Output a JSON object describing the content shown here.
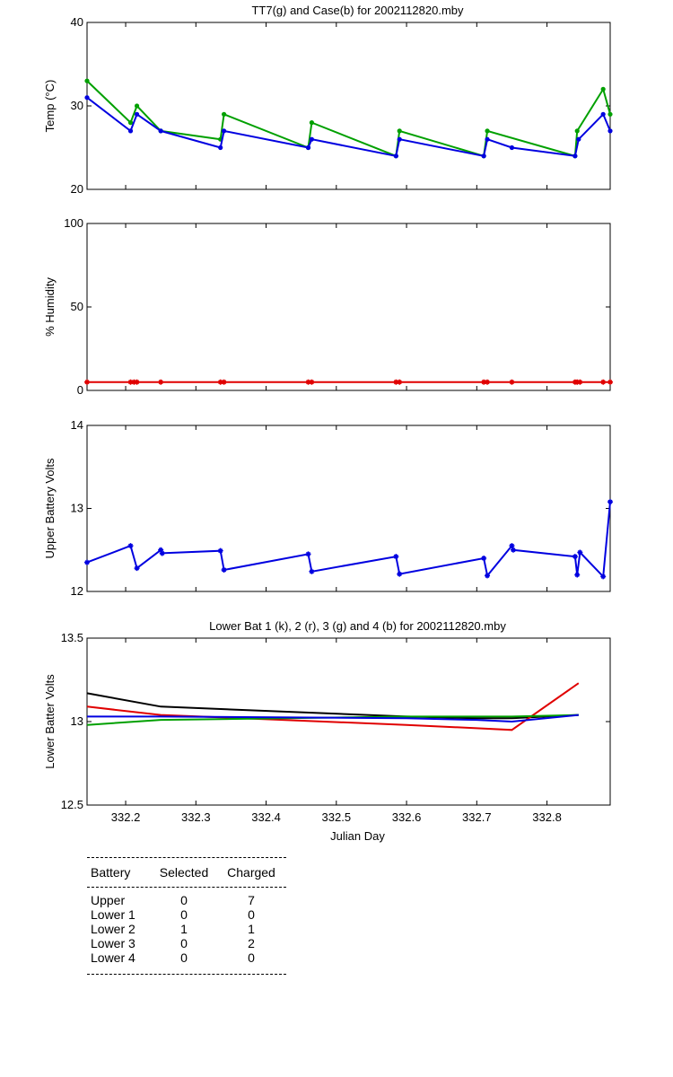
{
  "chart_data": [
    {
      "type": "line",
      "title": "TT7(g) and Case(b) for 2002112820.mby",
      "xlabel": "",
      "ylabel": "Temp  (°C)",
      "xlim": [
        332.145,
        332.89
      ],
      "ylim": [
        20,
        40
      ],
      "yticks": [
        20,
        30,
        40
      ],
      "series": [
        {
          "color": "#00a000",
          "marker": "point",
          "x": [
            332.145,
            332.207,
            332.216,
            332.25,
            332.335,
            332.34,
            332.46,
            332.465,
            332.585,
            332.59,
            332.71,
            332.715,
            332.84,
            332.843,
            332.88,
            332.89
          ],
          "y": [
            33,
            28,
            30,
            27,
            26,
            29,
            25,
            28,
            24,
            27,
            24,
            27,
            24,
            27,
            32,
            29
          ]
        },
        {
          "color": "#0000e0",
          "marker": "point",
          "x": [
            332.145,
            332.207,
            332.216,
            332.25,
            332.335,
            332.34,
            332.46,
            332.465,
            332.585,
            332.59,
            332.71,
            332.715,
            332.75,
            332.84,
            332.845,
            332.88,
            332.89
          ],
          "y": [
            31,
            27,
            29,
            27,
            25,
            27,
            25,
            26,
            24,
            26,
            24,
            26,
            25,
            24,
            26,
            29,
            27
          ]
        }
      ]
    },
    {
      "type": "line",
      "title": "",
      "xlabel": "",
      "ylabel": "% Humidity",
      "xlim": [
        332.145,
        332.89
      ],
      "ylim": [
        0,
        100
      ],
      "yticks": [
        0,
        50,
        100
      ],
      "series": [
        {
          "color": "#e00000",
          "marker": "star",
          "x": [
            332.145,
            332.207,
            332.212,
            332.216,
            332.25,
            332.335,
            332.34,
            332.46,
            332.465,
            332.585,
            332.59,
            332.71,
            332.715,
            332.75,
            332.84,
            332.843,
            332.847,
            332.88,
            332.89
          ],
          "y": [
            5,
            5,
            5,
            5,
            5,
            5,
            5,
            5,
            5,
            5,
            5,
            5,
            5,
            5,
            5,
            5,
            5,
            5,
            5
          ]
        }
      ]
    },
    {
      "type": "line",
      "title": "",
      "xlabel": "",
      "ylabel": "Upper Battery Volts",
      "xlim": [
        332.145,
        332.89
      ],
      "ylim": [
        12,
        14
      ],
      "yticks": [
        12,
        13,
        14
      ],
      "series": [
        {
          "color": "#0000e0",
          "marker": "star",
          "x": [
            332.145,
            332.207,
            332.216,
            332.25,
            332.252,
            332.335,
            332.34,
            332.46,
            332.465,
            332.585,
            332.59,
            332.71,
            332.715,
            332.75,
            332.752,
            332.84,
            332.843,
            332.847,
            332.88,
            332.89
          ],
          "y": [
            12.35,
            12.55,
            12.28,
            12.5,
            12.46,
            12.49,
            12.26,
            12.45,
            12.24,
            12.42,
            12.21,
            12.4,
            12.19,
            12.55,
            12.5,
            12.42,
            12.2,
            12.47,
            12.18,
            13.08
          ]
        }
      ]
    },
    {
      "type": "line",
      "title": "Lower Bat 1 (k), 2 (r), 3 (g) and 4 (b) for 2002112820.mby",
      "xlabel": "Julian Day",
      "ylabel": "Lower Batter Volts",
      "xlim": [
        332.145,
        332.89
      ],
      "ylim": [
        12.5,
        13.5
      ],
      "yticks": [
        12.5,
        13,
        13.5
      ],
      "xticks": [
        332.2,
        332.3,
        332.4,
        332.5,
        332.6,
        332.7,
        332.8
      ],
      "series": [
        {
          "color": "#000000",
          "marker": "none",
          "x": [
            332.145,
            332.25,
            332.6,
            332.7,
            332.75,
            332.845
          ],
          "y": [
            13.17,
            13.09,
            13.03,
            13.02,
            13.02,
            13.04
          ]
        },
        {
          "color": "#e00000",
          "marker": "none",
          "x": [
            332.145,
            332.25,
            332.6,
            332.7,
            332.75,
            332.845
          ],
          "y": [
            13.09,
            13.04,
            12.98,
            12.96,
            12.95,
            13.23
          ]
        },
        {
          "color": "#00a000",
          "marker": "none",
          "x": [
            332.145,
            332.25,
            332.6,
            332.7,
            332.75,
            332.845
          ],
          "y": [
            12.98,
            13.01,
            13.03,
            13.03,
            13.03,
            13.04
          ]
        },
        {
          "color": "#0000e0",
          "marker": "none",
          "x": [
            332.145,
            332.25,
            332.6,
            332.7,
            332.75,
            332.845
          ],
          "y": [
            13.03,
            13.03,
            13.02,
            13.01,
            13.0,
            13.04
          ]
        }
      ]
    }
  ],
  "battery_table": {
    "headers": [
      "Battery",
      "Selected",
      "Charged"
    ],
    "rows": [
      {
        "battery": "Upper",
        "selected": "0",
        "charged": "7"
      },
      {
        "battery": "Lower 1",
        "selected": "0",
        "charged": "0"
      },
      {
        "battery": "Lower 2",
        "selected": "1",
        "charged": "1"
      },
      {
        "battery": "Lower 3",
        "selected": "0",
        "charged": "2"
      },
      {
        "battery": "Lower 4",
        "selected": "0",
        "charged": "0"
      }
    ]
  }
}
